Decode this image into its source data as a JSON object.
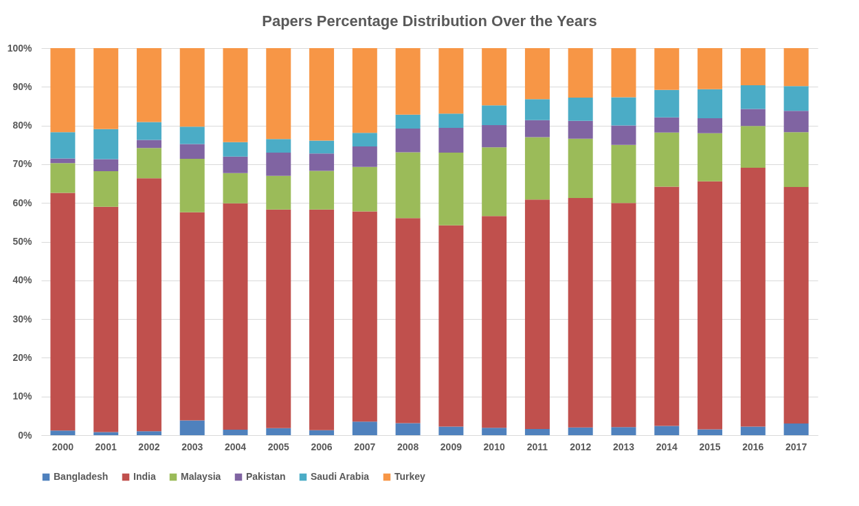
{
  "chart_data": {
    "type": "bar",
    "stacked": true,
    "title": "Papers Percentage Distribution Over the Years",
    "categories": [
      "2000",
      "2001",
      "2002",
      "2003",
      "2004",
      "2005",
      "2006",
      "2007",
      "2008",
      "2009",
      "2010",
      "2011",
      "2012",
      "2013",
      "2014",
      "2015",
      "2016",
      "2017"
    ],
    "series": [
      {
        "name": "Bangladesh",
        "color": "#4f81bd",
        "values": [
          1.2,
          0.8,
          1.0,
          3.8,
          1.4,
          1.8,
          1.3,
          3.5,
          3.1,
          2.2,
          1.9,
          1.6,
          2.0,
          2.1,
          2.4,
          1.5,
          2.2,
          3.0
        ]
      },
      {
        "name": "India",
        "color": "#c0504d",
        "values": [
          61.4,
          58.2,
          65.4,
          53.8,
          58.5,
          56.5,
          57.0,
          54.3,
          53.0,
          52.0,
          54.7,
          59.3,
          59.3,
          57.9,
          61.8,
          64.1,
          66.9,
          61.1
        ]
      },
      {
        "name": "Malaysia",
        "color": "#9bbb59",
        "values": [
          7.7,
          9.2,
          7.8,
          13.8,
          7.8,
          8.7,
          10.0,
          11.5,
          17.0,
          18.8,
          17.8,
          16.1,
          15.3,
          15.0,
          14.0,
          12.4,
          10.8,
          14.2
        ]
      },
      {
        "name": "Pakistan",
        "color": "#8064a2",
        "values": [
          1.2,
          3.1,
          2.1,
          3.8,
          4.3,
          6.0,
          4.5,
          5.3,
          6.1,
          6.4,
          5.7,
          4.4,
          4.6,
          5.0,
          3.9,
          3.9,
          4.4,
          5.5
        ]
      },
      {
        "name": "Saudi Arabia",
        "color": "#4bacc6",
        "values": [
          6.8,
          7.8,
          4.6,
          4.5,
          3.7,
          3.5,
          3.3,
          3.5,
          3.6,
          3.7,
          5.1,
          5.4,
          6.0,
          7.3,
          7.1,
          7.5,
          6.1,
          6.4
        ]
      },
      {
        "name": "Turkey",
        "color": "#f79646",
        "values": [
          21.7,
          20.9,
          19.1,
          20.3,
          24.3,
          23.5,
          23.9,
          21.9,
          17.2,
          16.9,
          14.8,
          13.2,
          12.8,
          12.7,
          10.8,
          10.6,
          9.6,
          9.8
        ]
      }
    ],
    "ylim": [
      0,
      100
    ],
    "yticks": [
      {
        "value": 0,
        "label": "0%"
      },
      {
        "value": 10,
        "label": "10%"
      },
      {
        "value": 20,
        "label": "20%"
      },
      {
        "value": 30,
        "label": "30%"
      },
      {
        "value": 40,
        "label": "40%"
      },
      {
        "value": 50,
        "label": "50%"
      },
      {
        "value": 60,
        "label": "60%"
      },
      {
        "value": 70,
        "label": "70%"
      },
      {
        "value": 80,
        "label": "80%"
      },
      {
        "value": 90,
        "label": "90%"
      },
      {
        "value": 100,
        "label": "100%"
      }
    ],
    "grid": "y",
    "legend": "bottom"
  }
}
